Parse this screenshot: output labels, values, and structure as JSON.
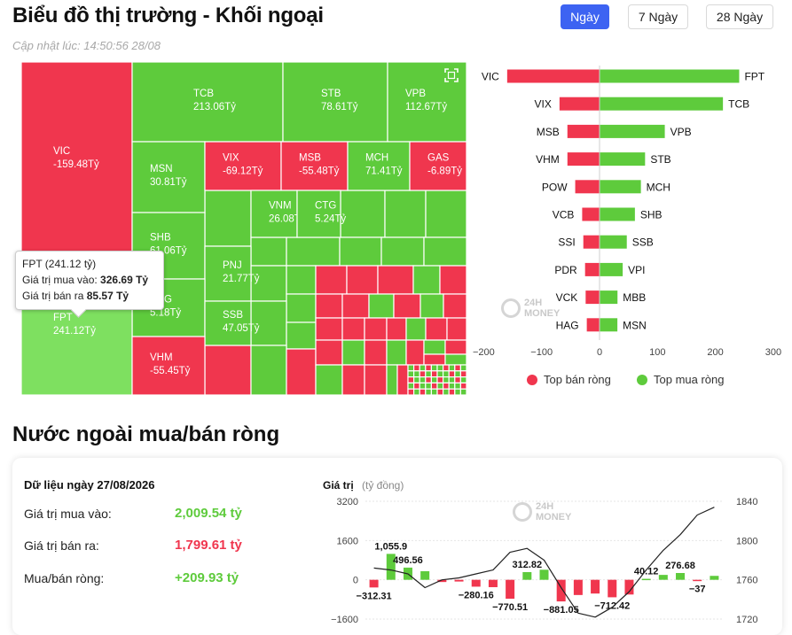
{
  "header": {
    "title": "Biểu đồ thị trường - Khối ngoại",
    "updated": "Cập nhật lúc: 14:50:56 28/08",
    "tabs": [
      {
        "label": "Ngày",
        "active": true
      },
      {
        "label": "7 Ngày",
        "active": false
      },
      {
        "label": "28 Ngày",
        "active": false
      }
    ]
  },
  "colors": {
    "green": "#5ecb3c",
    "red": "#f0364e",
    "accent": "#3d63f2",
    "fpt": "#7ee060"
  },
  "treemap": {
    "cells": [
      {
        "code": "VIC",
        "value": "-159.48Tỷ"
      },
      {
        "code": "TCB",
        "value": "213.06Tỷ"
      },
      {
        "code": "STB",
        "value": "78.61Tỷ"
      },
      {
        "code": "VPB",
        "value": "112.67Tỷ"
      },
      {
        "code": "MSN",
        "value": "30.81Tỷ"
      },
      {
        "code": "VIX",
        "value": "-69.12Tỷ"
      },
      {
        "code": "MSB",
        "value": "-55.48Tỷ"
      },
      {
        "code": "MCH",
        "value": "71.41Tỷ"
      },
      {
        "code": "GAS",
        "value": "-6.89Tỷ"
      },
      {
        "code": "VNM",
        "value": "26.08Tỷ"
      },
      {
        "code": "CTG",
        "value": "5.24Tỷ"
      },
      {
        "code": "SHB",
        "value": "61.06Tỷ"
      },
      {
        "code": "PNJ",
        "value": "21.77Tỷ"
      },
      {
        "code": "HPG",
        "value": "5.18Tỷ"
      },
      {
        "code": "SSB",
        "value": "47.05Tỷ"
      },
      {
        "code": "FPT",
        "value": "241.12Tỷ"
      },
      {
        "code": "VHM",
        "value": "-55.45Tỷ"
      }
    ],
    "tooltip": {
      "title": "FPT (241.12 tỷ)",
      "buy_label": "Giá trị mua vào:",
      "buy_value": "326.69 Tỷ",
      "sell_label": "Giá trị bán ra",
      "sell_value": "85.57 Tỷ"
    },
    "expand_icon": "expand-icon"
  },
  "top_chart": {
    "chart_data": {
      "type": "bar",
      "sell": [
        {
          "code": "VIC",
          "value": -159.48
        },
        {
          "code": "VIX",
          "value": -69.12
        },
        {
          "code": "MSB",
          "value": -55.48
        },
        {
          "code": "VHM",
          "value": -55.45
        },
        {
          "code": "POW",
          "value": -42
        },
        {
          "code": "VCB",
          "value": -30
        },
        {
          "code": "SSI",
          "value": -28
        },
        {
          "code": "PDR",
          "value": -25
        },
        {
          "code": "VCK",
          "value": -24
        },
        {
          "code": "HAG",
          "value": -22
        }
      ],
      "buy": [
        {
          "code": "FPT",
          "value": 241.12
        },
        {
          "code": "TCB",
          "value": 213.06
        },
        {
          "code": "VPB",
          "value": 112.67
        },
        {
          "code": "STB",
          "value": 78.61
        },
        {
          "code": "MCH",
          "value": 71.41
        },
        {
          "code": "SHB",
          "value": 61.06
        },
        {
          "code": "SSB",
          "value": 47.05
        },
        {
          "code": "VPI",
          "value": 40
        },
        {
          "code": "MBB",
          "value": 31
        },
        {
          "code": "MSN",
          "value": 30.81
        }
      ],
      "ticks": [
        "−200",
        "−100",
        "0",
        "100",
        "200",
        "300"
      ],
      "xlim": [
        -200,
        300
      ],
      "legend": [
        {
          "label": "Top bán ròng",
          "color": "#f0364e"
        },
        {
          "label": "Top mua ròng",
          "color": "#5ecb3c"
        }
      ],
      "legend_position": "bottom"
    }
  },
  "section": {
    "title": "Nước ngoài mua/bán ròng",
    "date": "Dữ liệu ngày 27/08/2026",
    "rows": [
      {
        "label": "Giá trị mua vào:",
        "value": "2,009.54 tỷ"
      },
      {
        "label": "Giá trị bán ra:",
        "value": "1,799.61 tỷ"
      },
      {
        "label": "Mua/bán ròng:",
        "value": "+209.93 tỷ"
      }
    ]
  },
  "history_chart": {
    "chart_data": {
      "type": "bar",
      "ylabel": "Giá trị",
      "yunit": "(tỷ đồng)",
      "left_ticks": [
        "3200",
        "1600",
        "0",
        "−1600"
      ],
      "right_ticks": [
        "1840",
        "1800",
        "1760",
        "1720"
      ],
      "ylim_left": [
        -1600,
        3200
      ],
      "ylim_right": [
        1720,
        1840
      ],
      "bars": [
        -312.31,
        1055.9,
        496.56,
        350,
        -90,
        -70,
        -280.16,
        -300,
        -770.51,
        312.82,
        410,
        -881.05,
        -620,
        -560,
        -712.42,
        -600,
        40.12,
        200,
        276.68,
        -37,
        160
      ],
      "bar_labels": [
        {
          "index": 0,
          "text": "−312.31"
        },
        {
          "index": 1,
          "text": "1,055.9"
        },
        {
          "index": 2,
          "text": "496.56"
        },
        {
          "index": 6,
          "text": "−280.16"
        },
        {
          "index": 8,
          "text": "−770.51"
        },
        {
          "index": 9,
          "text": "312.82"
        },
        {
          "index": 11,
          "text": "−881.05"
        },
        {
          "index": 14,
          "text": "−712.42"
        },
        {
          "index": 16,
          "text": "40.12"
        },
        {
          "index": 18,
          "text": "276.68"
        },
        {
          "index": 19,
          "text": "−37"
        }
      ],
      "line": [
        1772,
        1770,
        1766,
        1752,
        1760,
        1762,
        1766,
        1770,
        1788,
        1792,
        1780,
        1752,
        1726,
        1722,
        1732,
        1748,
        1770,
        1790,
        1806,
        1826,
        1834
      ]
    }
  },
  "watermark": {
    "line1": "24H",
    "line2": "MONEY"
  }
}
